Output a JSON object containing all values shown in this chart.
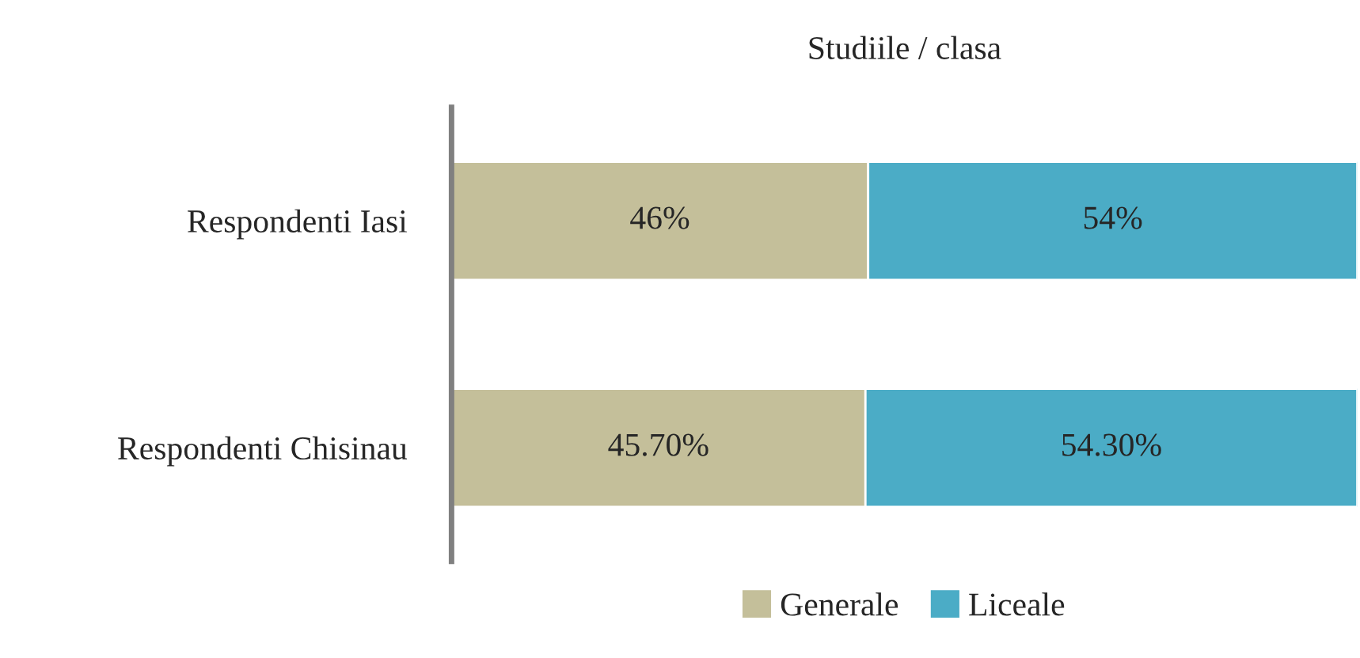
{
  "chart_data": {
    "type": "bar",
    "orientation": "horizontal",
    "stacked": true,
    "title": "Studiile / clasa",
    "categories": [
      "Respondenti Iasi",
      "Respondenti Chisinau"
    ],
    "series": [
      {
        "name": "Generale",
        "color": "#c4bf9a",
        "values": [
          46,
          45.7
        ],
        "value_labels": [
          "46%",
          "45.70%"
        ]
      },
      {
        "name": "Liceale",
        "color": "#4bacc6",
        "values": [
          54,
          54.3
        ],
        "value_labels": [
          "54%",
          "54.30%"
        ]
      }
    ],
    "xlim": [
      0,
      100
    ],
    "tick_labels": "y",
    "grid": false,
    "legend": "bottom"
  }
}
